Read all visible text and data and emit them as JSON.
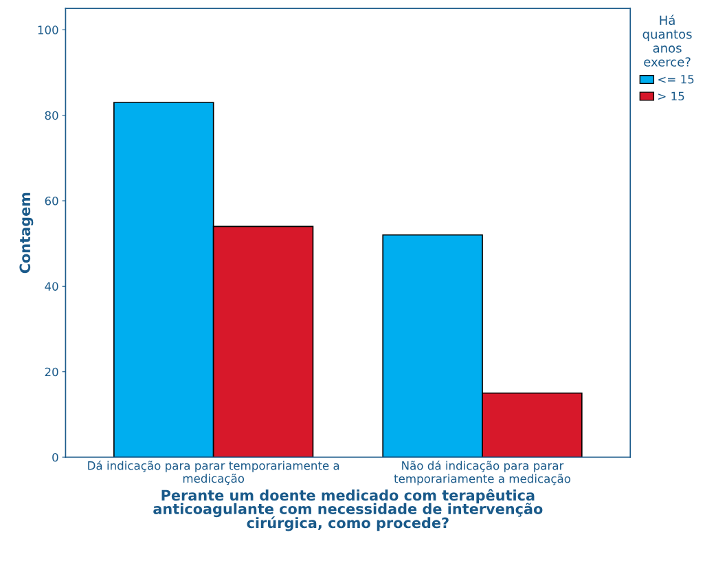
{
  "chart_data": {
    "type": "bar",
    "categories": [
      "Dá indicação para parar temporariamente a\nmedicação",
      "Não dá indicação para parar\ntemporariamente a medicação"
    ],
    "series": [
      {
        "name": "<= 15",
        "color": "#00aeef",
        "values": [
          83,
          52
        ]
      },
      {
        "name": "> 15",
        "color": "#d7182a",
        "values": [
          54,
          15
        ]
      }
    ],
    "xlabel": "Perante um doente medicado com terapêutica\nanticoagulante com necessidade de intervenção\ncirúrgica, como procede?",
    "ylabel": "Contagem",
    "legend_title": "Há\nquantos\nanos\nexerce?",
    "legend": "right",
    "ylim": [
      0,
      105
    ],
    "yticks": [
      0,
      20,
      40,
      60,
      80,
      100
    ],
    "grid": false
  }
}
